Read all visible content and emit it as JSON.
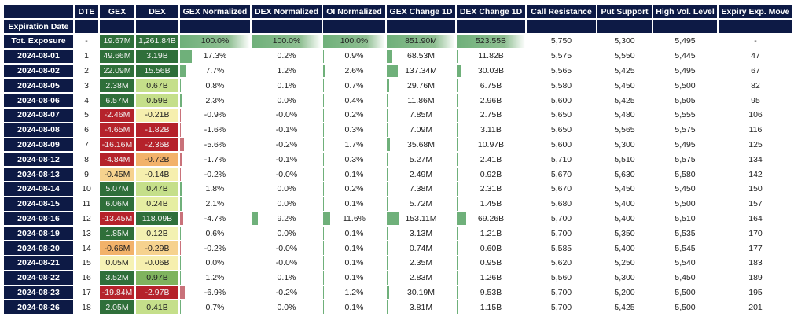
{
  "table": {
    "headers": [
      "",
      "DTE",
      "GEX",
      "DEX",
      "GEX Normalized",
      "DEX Normalized",
      "OI Normalized",
      "GEX Change 1D",
      "DEX Change 1D",
      "Call Resistance",
      "Put Support",
      "High Vol. Level",
      "Expiry Exp. Move"
    ],
    "subheader_label": "Expiration Date",
    "bar_colors": {
      "positive": "#6fb07a",
      "negative": "#c9727a"
    },
    "rows": [
      {
        "date": "Tot. Exposure",
        "dte": "-",
        "gex": "19.67M",
        "gex_color": "#2f6f3a",
        "dex": "1,261.84B",
        "dex_color": "#2f6f3a",
        "gex_norm": "100.0%",
        "dex_norm": "100.0%",
        "oi_norm": "100.0%",
        "gex_chg": "851.90M",
        "dex_chg": "523.55B",
        "call_res": "5,750",
        "put_sup": "5,300",
        "high_vol": "5,495",
        "exp_move": "-"
      },
      {
        "date": "2024-08-01",
        "dte": "1",
        "gex": "49.66M",
        "gex_color": "#2f6f3a",
        "dex": "3.19B",
        "dex_color": "#2f6f3a",
        "gex_norm": "17.3%",
        "dex_norm": "0.2%",
        "oi_norm": "0.9%",
        "gex_chg": "68.53M",
        "dex_chg": "11.82B",
        "call_res": "5,575",
        "put_sup": "5,550",
        "high_vol": "5,445",
        "exp_move": "47"
      },
      {
        "date": "2024-08-02",
        "dte": "2",
        "gex": "22.09M",
        "gex_color": "#2f6f3a",
        "dex": "15.56B",
        "dex_color": "#2f6f3a",
        "gex_norm": "7.7%",
        "dex_norm": "1.2%",
        "oi_norm": "2.6%",
        "gex_chg": "137.34M",
        "dex_chg": "30.03B",
        "call_res": "5,565",
        "put_sup": "5,425",
        "high_vol": "5,495",
        "exp_move": "67"
      },
      {
        "date": "2024-08-05",
        "dte": "3",
        "gex": "2.38M",
        "gex_color": "#2f6f3a",
        "dex": "0.67B",
        "dex_color": "#c5df8a",
        "gex_norm": "0.8%",
        "dex_norm": "0.1%",
        "oi_norm": "0.7%",
        "gex_chg": "29.76M",
        "dex_chg": "6.75B",
        "call_res": "5,580",
        "put_sup": "5,450",
        "high_vol": "5,500",
        "exp_move": "82"
      },
      {
        "date": "2024-08-06",
        "dte": "4",
        "gex": "6.57M",
        "gex_color": "#2f6f3a",
        "dex": "0.59B",
        "dex_color": "#c5df8a",
        "gex_norm": "2.3%",
        "dex_norm": "0.0%",
        "oi_norm": "0.4%",
        "gex_chg": "11.86M",
        "dex_chg": "2.96B",
        "call_res": "5,600",
        "put_sup": "5,425",
        "high_vol": "5,505",
        "exp_move": "95"
      },
      {
        "date": "2024-08-07",
        "dte": "5",
        "gex": "-2.46M",
        "gex_color": "#b5222b",
        "dex": "-0.21B",
        "dex_color": "#f6efae",
        "gex_norm": "-0.9%",
        "dex_norm": "-0.0%",
        "oi_norm": "0.2%",
        "gex_chg": "7.85M",
        "dex_chg": "2.75B",
        "call_res": "5,650",
        "put_sup": "5,480",
        "high_vol": "5,555",
        "exp_move": "106"
      },
      {
        "date": "2024-08-08",
        "dte": "6",
        "gex": "-4.65M",
        "gex_color": "#b5222b",
        "dex": "-1.82B",
        "dex_color": "#b5222b",
        "gex_norm": "-1.6%",
        "dex_norm": "-0.1%",
        "oi_norm": "0.3%",
        "gex_chg": "7.09M",
        "dex_chg": "3.11B",
        "call_res": "5,650",
        "put_sup": "5,565",
        "high_vol": "5,575",
        "exp_move": "116"
      },
      {
        "date": "2024-08-09",
        "dte": "7",
        "gex": "-16.16M",
        "gex_color": "#b5222b",
        "dex": "-2.36B",
        "dex_color": "#b5222b",
        "gex_norm": "-5.6%",
        "dex_norm": "-0.2%",
        "oi_norm": "1.7%",
        "gex_chg": "35.68M",
        "dex_chg": "10.97B",
        "call_res": "5,600",
        "put_sup": "5,300",
        "high_vol": "5,495",
        "exp_move": "125"
      },
      {
        "date": "2024-08-12",
        "dte": "8",
        "gex": "-4.84M",
        "gex_color": "#b5222b",
        "dex": "-0.72B",
        "dex_color": "#f2b26a",
        "gex_norm": "-1.7%",
        "dex_norm": "-0.1%",
        "oi_norm": "0.3%",
        "gex_chg": "5.27M",
        "dex_chg": "2.41B",
        "call_res": "5,710",
        "put_sup": "5,510",
        "high_vol": "5,575",
        "exp_move": "134"
      },
      {
        "date": "2024-08-13",
        "dte": "9",
        "gex": "-0.45M",
        "gex_color": "#f6d28e",
        "dex": "-0.14B",
        "dex_color": "#f6efae",
        "gex_norm": "-0.2%",
        "dex_norm": "-0.0%",
        "oi_norm": "0.1%",
        "gex_chg": "2.49M",
        "dex_chg": "0.92B",
        "call_res": "5,670",
        "put_sup": "5,630",
        "high_vol": "5,580",
        "exp_move": "142"
      },
      {
        "date": "2024-08-14",
        "dte": "10",
        "gex": "5.07M",
        "gex_color": "#2f6f3a",
        "dex": "0.47B",
        "dex_color": "#c5df8a",
        "gex_norm": "1.8%",
        "dex_norm": "0.0%",
        "oi_norm": "0.2%",
        "gex_chg": "7.38M",
        "dex_chg": "2.31B",
        "call_res": "5,670",
        "put_sup": "5,450",
        "high_vol": "5,450",
        "exp_move": "150"
      },
      {
        "date": "2024-08-15",
        "dte": "11",
        "gex": "6.06M",
        "gex_color": "#2f6f3a",
        "dex": "0.24B",
        "dex_color": "#e6eea2",
        "gex_norm": "2.1%",
        "dex_norm": "0.0%",
        "oi_norm": "0.1%",
        "gex_chg": "5.72M",
        "dex_chg": "1.45B",
        "call_res": "5,680",
        "put_sup": "5,400",
        "high_vol": "5,500",
        "exp_move": "157"
      },
      {
        "date": "2024-08-16",
        "dte": "12",
        "gex": "-13.45M",
        "gex_color": "#b5222b",
        "dex": "118.09B",
        "dex_color": "#2f6f3a",
        "gex_norm": "-4.7%",
        "dex_norm": "9.2%",
        "oi_norm": "11.6%",
        "gex_chg": "153.11M",
        "dex_chg": "69.26B",
        "call_res": "5,700",
        "put_sup": "5,400",
        "high_vol": "5,510",
        "exp_move": "164"
      },
      {
        "date": "2024-08-19",
        "dte": "13",
        "gex": "1.85M",
        "gex_color": "#2f6f3a",
        "dex": "0.12B",
        "dex_color": "#f3f1b2",
        "gex_norm": "0.6%",
        "dex_norm": "0.0%",
        "oi_norm": "0.1%",
        "gex_chg": "3.13M",
        "dex_chg": "1.21B",
        "call_res": "5,700",
        "put_sup": "5,350",
        "high_vol": "5,535",
        "exp_move": "170"
      },
      {
        "date": "2024-08-20",
        "dte": "14",
        "gex": "-0.66M",
        "gex_color": "#f2b26a",
        "dex": "-0.29B",
        "dex_color": "#f6d28e",
        "gex_norm": "-0.2%",
        "dex_norm": "-0.0%",
        "oi_norm": "0.1%",
        "gex_chg": "0.74M",
        "dex_chg": "0.60B",
        "call_res": "5,585",
        "put_sup": "5,400",
        "high_vol": "5,545",
        "exp_move": "177"
      },
      {
        "date": "2024-08-21",
        "dte": "15",
        "gex": "0.05M",
        "gex_color": "#f6f2b4",
        "dex": "-0.06B",
        "dex_color": "#f6efae",
        "gex_norm": "0.0%",
        "dex_norm": "-0.0%",
        "oi_norm": "0.1%",
        "gex_chg": "2.35M",
        "dex_chg": "0.95B",
        "call_res": "5,620",
        "put_sup": "5,250",
        "high_vol": "5,540",
        "exp_move": "183"
      },
      {
        "date": "2024-08-22",
        "dte": "16",
        "gex": "3.52M",
        "gex_color": "#2f6f3a",
        "dex": "0.97B",
        "dex_color": "#7fb35e",
        "gex_norm": "1.2%",
        "dex_norm": "0.1%",
        "oi_norm": "0.1%",
        "gex_chg": "2.83M",
        "dex_chg": "1.26B",
        "call_res": "5,560",
        "put_sup": "5,300",
        "high_vol": "5,450",
        "exp_move": "189"
      },
      {
        "date": "2024-08-23",
        "dte": "17",
        "gex": "-19.84M",
        "gex_color": "#b5222b",
        "dex": "-2.97B",
        "dex_color": "#b5222b",
        "gex_norm": "-6.9%",
        "dex_norm": "-0.2%",
        "oi_norm": "1.2%",
        "gex_chg": "30.19M",
        "dex_chg": "9.53B",
        "call_res": "5,700",
        "put_sup": "5,200",
        "high_vol": "5,500",
        "exp_move": "195"
      },
      {
        "date": "2024-08-26",
        "dte": "18",
        "gex": "2.05M",
        "gex_color": "#2f6f3a",
        "dex": "0.41B",
        "dex_color": "#c5df8a",
        "gex_norm": "0.7%",
        "dex_norm": "0.0%",
        "oi_norm": "0.1%",
        "gex_chg": "3.81M",
        "dex_chg": "1.15B",
        "call_res": "5,700",
        "put_sup": "5,425",
        "high_vol": "5,500",
        "exp_move": "201"
      }
    ]
  }
}
